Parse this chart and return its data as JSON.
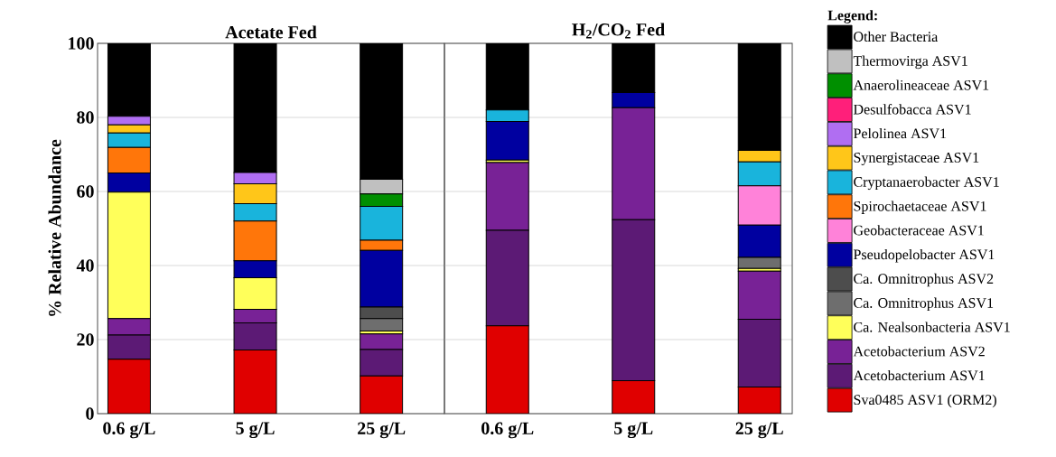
{
  "chart_data": [
    {
      "type": "bar",
      "title": "Acetate Fed",
      "ylabel": "% Relative Abundance",
      "categories": [
        "0.6 g/L",
        "5 g/L",
        "25 g/L"
      ],
      "stacked": true,
      "ylim": [
        0,
        100
      ],
      "yticks": [
        0,
        20,
        40,
        60,
        80,
        100
      ],
      "grid": "y",
      "legend": false,
      "series": [
        {
          "color": "#e00000",
          "values": [
            14.7,
            17.2,
            10.2
          ]
        },
        {
          "color": "#5c1a75",
          "values": [
            6.5,
            7.3,
            7.1
          ]
        },
        {
          "color": "#782296",
          "values": [
            4.5,
            3.7,
            4.2
          ]
        },
        {
          "color": "#ffff5a",
          "values": [
            34.1,
            8.5,
            0.8
          ]
        },
        {
          "color": "#6e6e6e",
          "values": [
            0,
            0,
            3.4
          ]
        },
        {
          "color": "#4d4d4d",
          "values": [
            0,
            0,
            3.1
          ]
        },
        {
          "color": "#0000a0",
          "values": [
            5.2,
            4.6,
            15.3
          ]
        },
        {
          "color": "#ff82d9",
          "values": [
            0,
            0,
            0
          ]
        },
        {
          "color": "#ff760a",
          "values": [
            6.9,
            10.7,
            2.7
          ]
        },
        {
          "color": "#19b4dc",
          "values": [
            3.9,
            4.7,
            9.2
          ]
        },
        {
          "color": "#ffc619",
          "values": [
            2.2,
            5.4,
            0
          ]
        },
        {
          "color": "#b06ef2",
          "values": [
            2.3,
            3.0,
            0
          ]
        },
        {
          "color": "#ff1f7a",
          "values": [
            0,
            0,
            0
          ]
        },
        {
          "color": "#008f00",
          "values": [
            0,
            0,
            3.3
          ]
        },
        {
          "color": "#c0c0c0",
          "values": [
            0,
            0,
            4.0
          ]
        },
        {
          "color": "#000000",
          "values": [
            19.7,
            34.9,
            36.7
          ]
        }
      ]
    },
    {
      "type": "bar",
      "title": "H$_{2}$/CO$_{2}$ Fed",
      "categories": [
        "0.6 g/L",
        "5 g/L",
        "25 g/L"
      ],
      "stacked": true,
      "ylim": [
        0,
        100
      ],
      "yticks": [
        0,
        20,
        40,
        60,
        80,
        100
      ],
      "grid": "y",
      "legend": "right",
      "legend_title": "Legend:",
      "tick_labels": "x",
      "series": [
        {
          "name": "Sva0485 ASV1 (ORM2)",
          "color": "#e00000",
          "values": [
            23.7,
            8.9,
            7.2
          ]
        },
        {
          "name": "Acetobacterium ASV1",
          "color": "#5c1a75",
          "values": [
            25.8,
            43.5,
            18.3
          ]
        },
        {
          "name": "Acetobacterium ASV2",
          "color": "#782296",
          "values": [
            18.3,
            30.2,
            13.0
          ]
        },
        {
          "name": "Ca. Nealsonbacteria ASV1",
          "color": "#ffff5a",
          "values": [
            0.7,
            0,
            0.7
          ]
        },
        {
          "name": "Ca. Omnitrophus ASV1",
          "color": "#6e6e6e",
          "values": [
            0,
            0,
            3.0
          ]
        },
        {
          "name": "Ca. Omnitrophus ASV2",
          "color": "#4d4d4d",
          "values": [
            0,
            0,
            0
          ]
        },
        {
          "name": "Pseudopelobacter ASV1",
          "color": "#0000a0",
          "values": [
            10.4,
            4.1,
            8.7
          ]
        },
        {
          "name": "Geobacteraceae ASV1",
          "color": "#ff82d9",
          "values": [
            0,
            0,
            10.6
          ]
        },
        {
          "name": "Spirochaetaceae ASV1",
          "color": "#ff760a",
          "values": [
            0,
            0,
            0
          ]
        },
        {
          "name": "Cryptanaerobacter ASV1",
          "color": "#19b4dc",
          "values": [
            3.1,
            0,
            6.5
          ]
        },
        {
          "name": "Synergistaceae ASV1",
          "color": "#ffc619",
          "values": [
            0,
            0,
            3.1
          ]
        },
        {
          "name": "Pelolinea ASV1",
          "color": "#b06ef2",
          "values": [
            0,
            0,
            0
          ]
        },
        {
          "name": "Desulfobacca ASV1",
          "color": "#ff1f7a",
          "values": [
            0,
            0,
            0
          ]
        },
        {
          "name": "Anaerolineaceae ASV1",
          "color": "#008f00",
          "values": [
            0,
            0,
            0
          ]
        },
        {
          "name": "Thermovirga ASV1",
          "color": "#c0c0c0",
          "values": [
            0,
            0,
            0
          ]
        },
        {
          "name": "Other Bacteria",
          "color": "#000000",
          "values": [
            18.0,
            13.3,
            28.9
          ]
        }
      ]
    }
  ]
}
